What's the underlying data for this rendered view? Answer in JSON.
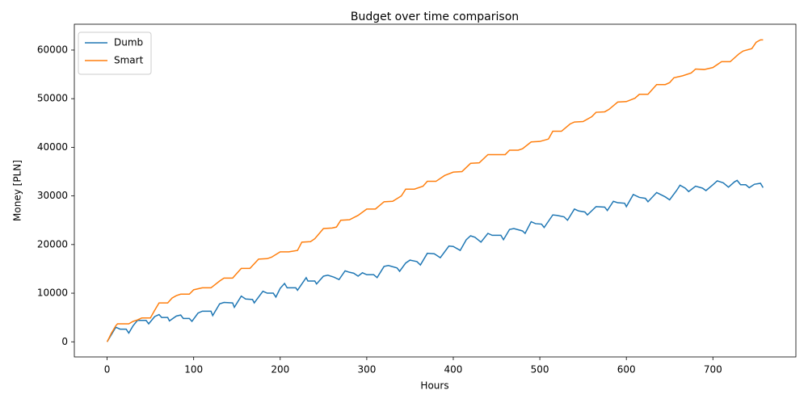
{
  "chart_data": {
    "type": "line",
    "title": "Budget over time comparison",
    "x_label": "Hours",
    "y_label": "Money [PLN]",
    "xlim": [
      -37.9,
      795.9
    ],
    "ylim": [
      -3110,
      65310
    ],
    "xticks": [
      0,
      100,
      200,
      300,
      400,
      500,
      600,
      700
    ],
    "yticks": [
      0,
      10000,
      20000,
      30000,
      40000,
      50000,
      60000
    ],
    "grid": false,
    "legend": "upper left",
    "series": [
      {
        "name": "Dumb",
        "color": "#1f77b4",
        "x": [
          0,
          10,
          15,
          22,
          25,
          30,
          35,
          45,
          48,
          55,
          60,
          63,
          70,
          72,
          80,
          85,
          88,
          95,
          98,
          105,
          110,
          120,
          122,
          130,
          135,
          145,
          147,
          155,
          160,
          168,
          170,
          180,
          185,
          192,
          195,
          200,
          205,
          208,
          218,
          220,
          230,
          232,
          240,
          242,
          250,
          255,
          262,
          268,
          275,
          280,
          285,
          290,
          295,
          300,
          308,
          312,
          320,
          325,
          335,
          338,
          345,
          350,
          358,
          362,
          370,
          378,
          385,
          395,
          400,
          408,
          415,
          420,
          425,
          432,
          440,
          445,
          455,
          458,
          465,
          470,
          480,
          483,
          490,
          495,
          502,
          505,
          515,
          520,
          528,
          532,
          540,
          545,
          552,
          555,
          565,
          575,
          578,
          585,
          590,
          598,
          600,
          608,
          615,
          622,
          625,
          635,
          645,
          650,
          658,
          662,
          668,
          672,
          680,
          688,
          692,
          700,
          705,
          712,
          718,
          725,
          728,
          732,
          738,
          742,
          748,
          755,
          758
        ],
        "values": [
          0,
          3000,
          2600,
          2600,
          1800,
          3300,
          4400,
          4400,
          3700,
          5200,
          5600,
          5000,
          5000,
          4300,
          5300,
          5500,
          4800,
          4800,
          4200,
          5900,
          6300,
          6300,
          5400,
          7800,
          8100,
          8000,
          7100,
          9400,
          8800,
          8700,
          8000,
          10400,
          10000,
          10000,
          9200,
          11000,
          12000,
          11100,
          11100,
          10600,
          13200,
          12500,
          12500,
          11900,
          13500,
          13700,
          13300,
          12800,
          14600,
          14300,
          14100,
          13500,
          14200,
          13800,
          13800,
          13200,
          15500,
          15700,
          15200,
          14500,
          16200,
          16800,
          16500,
          15800,
          18200,
          18100,
          17300,
          19700,
          19600,
          18800,
          21000,
          21800,
          21500,
          20500,
          22300,
          21900,
          21900,
          21000,
          23100,
          23300,
          22800,
          22300,
          24700,
          24300,
          24200,
          23500,
          26100,
          26000,
          25700,
          25000,
          27300,
          26900,
          26700,
          26100,
          27800,
          27700,
          27000,
          28900,
          28600,
          28500,
          27800,
          30300,
          29700,
          29500,
          28800,
          30700,
          29800,
          29200,
          31100,
          32200,
          31600,
          30900,
          32000,
          31600,
          31100,
          32300,
          33100,
          32700,
          31800,
          32900,
          33200,
          32300,
          32300,
          31700,
          32400,
          32600,
          31700
        ]
      },
      {
        "name": "Smart",
        "color": "#ff7f0e",
        "x": [
          0,
          5,
          10,
          12,
          20,
          25,
          30,
          35,
          40,
          50,
          55,
          60,
          70,
          75,
          80,
          85,
          95,
          100,
          110,
          120,
          130,
          135,
          145,
          155,
          165,
          175,
          185,
          190,
          200,
          210,
          220,
          225,
          235,
          240,
          250,
          260,
          265,
          270,
          280,
          290,
          300,
          310,
          320,
          330,
          340,
          345,
          355,
          365,
          370,
          380,
          390,
          400,
          410,
          420,
          430,
          440,
          450,
          460,
          465,
          475,
          480,
          490,
          500,
          510,
          515,
          525,
          535,
          540,
          550,
          560,
          565,
          575,
          580,
          590,
          600,
          610,
          615,
          625,
          635,
          645,
          650,
          655,
          665,
          675,
          680,
          690,
          700,
          710,
          720,
          730,
          735,
          745,
          750,
          755,
          758
        ],
        "values": [
          0,
          1800,
          3300,
          3700,
          3700,
          3700,
          4200,
          4500,
          4900,
          4900,
          6500,
          8000,
          8000,
          9000,
          9500,
          9800,
          9800,
          10700,
          11100,
          11100,
          12500,
          13100,
          13100,
          15100,
          15100,
          17000,
          17100,
          17400,
          18500,
          18500,
          18800,
          20500,
          20600,
          21200,
          23300,
          23400,
          23600,
          25000,
          25100,
          26000,
          27300,
          27300,
          28800,
          28900,
          30000,
          31400,
          31400,
          32000,
          33000,
          33000,
          34200,
          34900,
          35000,
          36700,
          36800,
          38500,
          38500,
          38500,
          39400,
          39400,
          39700,
          41100,
          41200,
          41700,
          43300,
          43300,
          44800,
          45200,
          45300,
          46300,
          47200,
          47300,
          47800,
          49300,
          49400,
          50100,
          50900,
          50900,
          52900,
          52900,
          53300,
          54300,
          54700,
          55300,
          56100,
          56000,
          56400,
          57600,
          57600,
          59200,
          59800,
          60300,
          61600,
          62100,
          62100
        ]
      }
    ]
  }
}
